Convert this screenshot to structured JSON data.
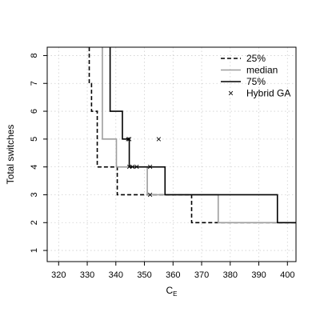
{
  "chart_data": {
    "type": "line",
    "xlabel": "C",
    "xlabel_sub": "E",
    "ylabel": "Total switches",
    "xlim": [
      316,
      403
    ],
    "ylim": [
      0.6,
      8.3
    ],
    "xticks": [
      320,
      330,
      340,
      350,
      360,
      370,
      380,
      390,
      400
    ],
    "yticks": [
      1,
      2,
      3,
      4,
      5,
      6,
      7,
      8
    ],
    "grid": true,
    "legend_position": "top-right",
    "series": [
      {
        "name": "25%",
        "style": "dashed",
        "color": "#000000",
        "points": [
          [
            330.7,
            8.3
          ],
          [
            330.7,
            7
          ],
          [
            331.5,
            7
          ],
          [
            331.5,
            6
          ],
          [
            333.5,
            6
          ],
          [
            333.5,
            4
          ],
          [
            340.5,
            4
          ],
          [
            340.5,
            3
          ],
          [
            366.5,
            3
          ],
          [
            366.5,
            2
          ],
          [
            403,
            2
          ]
        ]
      },
      {
        "name": "median",
        "style": "solid",
        "color": "#9e9e9e",
        "points": [
          [
            335.3,
            8.3
          ],
          [
            335.3,
            5
          ],
          [
            340.2,
            5
          ],
          [
            340.2,
            4
          ],
          [
            351,
            4
          ],
          [
            351,
            3
          ],
          [
            375.8,
            3
          ],
          [
            375.8,
            2
          ],
          [
            403,
            2
          ]
        ]
      },
      {
        "name": "75%",
        "style": "solid",
        "color": "#000000",
        "points": [
          [
            338,
            8.3
          ],
          [
            338,
            6
          ],
          [
            342.3,
            6
          ],
          [
            342.3,
            5
          ],
          [
            344.7,
            5
          ],
          [
            344.7,
            4
          ],
          [
            357.2,
            4
          ],
          [
            357.2,
            3
          ],
          [
            396.5,
            3
          ],
          [
            396.5,
            2
          ],
          [
            403,
            2
          ]
        ]
      }
    ],
    "scatter": {
      "name": "Hybrid GA",
      "marker": "×",
      "color": "#000000",
      "points": [
        [
          344.3,
          5
        ],
        [
          344.7,
          5
        ],
        [
          355,
          5
        ],
        [
          344.7,
          4
        ],
        [
          345.8,
          4
        ],
        [
          347.3,
          4
        ],
        [
          352,
          4
        ],
        [
          352,
          3
        ]
      ]
    }
  }
}
